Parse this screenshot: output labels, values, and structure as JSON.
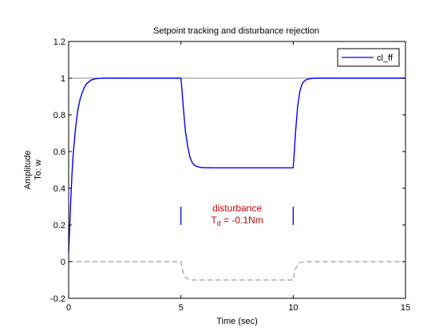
{
  "chart_data": {
    "type": "line",
    "title": "Setpoint tracking and disturbance rejection",
    "xlabel": "Time (sec)",
    "ylabel": "Amplitude",
    "ylabel2": "To: w",
    "xlim": [
      0,
      15
    ],
    "ylim": [
      -0.2,
      1.2
    ],
    "xticks": [
      "0",
      "5",
      "10",
      "15"
    ],
    "xtick_values": [
      0,
      5,
      10,
      15
    ],
    "yticks": [
      "-0.2",
      "0",
      "0.2",
      "0.4",
      "0.6",
      "0.8",
      "1",
      "1.2"
    ],
    "ytick_values": [
      -0.2,
      0,
      0.2,
      0.4,
      0.6,
      0.8,
      1,
      1.2
    ],
    "grid": false,
    "legend_position": "top-right",
    "reference_line": {
      "y": 1,
      "color": "#888888"
    },
    "series": [
      {
        "name": "cl_ff",
        "color": "#0000ff",
        "x": [
          0,
          0.05,
          0.1,
          0.15,
          0.2,
          0.3,
          0.4,
          0.5,
          0.6,
          0.7,
          0.8,
          1.0,
          1.2,
          1.5,
          2.0,
          5.0,
          5.05,
          5.1,
          5.2,
          5.3,
          5.4,
          5.5,
          5.6,
          5.8,
          6.0,
          6.5,
          7.0,
          10.0,
          10.05,
          10.1,
          10.2,
          10.3,
          10.4,
          10.5,
          10.6,
          10.8,
          11.0,
          11.5,
          15.0
        ],
        "y": [
          0.05,
          0.2,
          0.35,
          0.48,
          0.58,
          0.72,
          0.82,
          0.88,
          0.92,
          0.95,
          0.97,
          0.99,
          0.997,
          1.0,
          1.0,
          1.0,
          0.93,
          0.85,
          0.71,
          0.63,
          0.57,
          0.54,
          0.525,
          0.515,
          0.512,
          0.511,
          0.511,
          0.511,
          0.6,
          0.7,
          0.85,
          0.93,
          0.97,
          0.985,
          0.993,
          0.998,
          1.0,
          1.0,
          1.0
        ]
      },
      {
        "name": "",
        "color": "#999999",
        "dashed": true,
        "x": [
          0,
          5.0,
          5.05,
          5.1,
          5.2,
          5.3,
          5.5,
          10.0,
          10.05,
          10.1,
          10.2,
          10.3,
          10.5,
          15.0
        ],
        "y": [
          0,
          0,
          -0.035,
          -0.06,
          -0.085,
          -0.095,
          -0.1,
          -0.1,
          -0.065,
          -0.04,
          -0.015,
          -0.005,
          0,
          0
        ]
      }
    ],
    "annotations": {
      "text_line1": "disturbance",
      "text_line2_main": "T",
      "text_line2_sub": "d",
      "text_line2_rest": " = -0.1Nm",
      "color": "#cc0000",
      "anchor_x": 7.5,
      "anchor_y": 0.23,
      "markers": [
        {
          "x": 5.0,
          "y0": 0.2,
          "y1": 0.3
        },
        {
          "x": 10.0,
          "y0": 0.2,
          "y1": 0.3
        }
      ],
      "marker_color": "#0000ff"
    }
  }
}
